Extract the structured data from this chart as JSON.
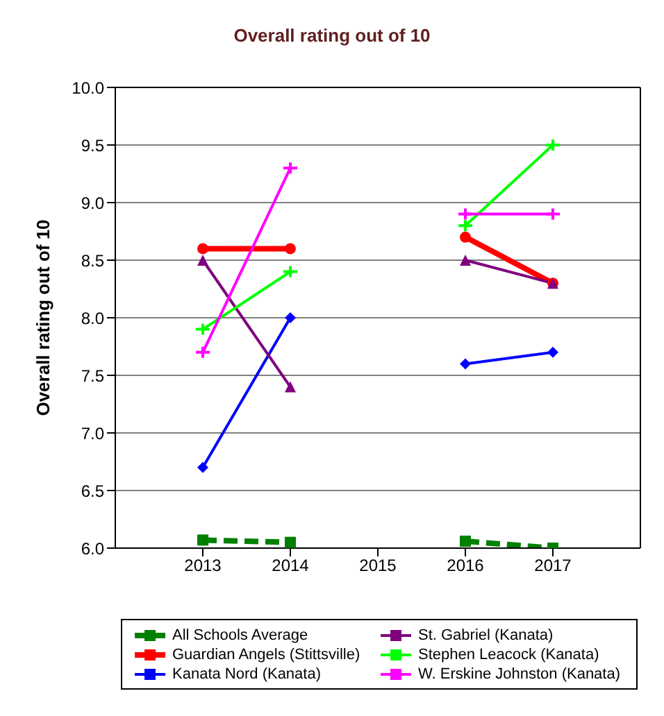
{
  "chart_data": {
    "type": "line",
    "title": "Overall rating out of 10",
    "ylabel": "Overall rating out of 10",
    "x": [
      2013,
      2014,
      2015,
      2016,
      2017
    ],
    "xlim": [
      2012,
      2018
    ],
    "xticks": [
      2013,
      2014,
      2015,
      2016,
      2017
    ],
    "ylim": [
      6,
      10
    ],
    "yticks": [
      {
        "value": 6,
        "label": "6.0"
      },
      6.5,
      {
        "value": 7,
        "label": "7.0"
      },
      7.5,
      {
        "value": 8,
        "label": "8.0"
      },
      8.5,
      {
        "value": 9,
        "label": "9.0"
      },
      9.5,
      {
        "value": 10,
        "label": "10.0"
      }
    ],
    "grid": "y",
    "legend": "bottom",
    "line_style": "solid",
    "series": [
      {
        "name": "All Schools Average",
        "color": "#008000",
        "values": [
          6.07,
          6.05,
          null,
          6.06,
          6.0
        ],
        "marker": "square",
        "line_style": "dashed"
      },
      {
        "name": "Guardian Angels (Stittsville)",
        "color": "#ff0000",
        "values": [
          8.6,
          8.6,
          null,
          8.7,
          8.3
        ],
        "marker": "circle"
      },
      {
        "name": "Kanata Nord (Kanata)",
        "color": "#0000ff",
        "values": [
          6.7,
          8.0,
          null,
          7.6,
          7.7
        ],
        "marker": "diamond"
      },
      {
        "name": "St. Gabriel (Kanata)",
        "color": "#800080",
        "values": [
          8.5,
          7.4,
          null,
          8.5,
          8.3
        ],
        "marker": "triangle"
      },
      {
        "name": "Stephen Leacock (Kanata)",
        "color": "#00ff00",
        "values": [
          7.9,
          8.4,
          null,
          8.8,
          9.5
        ],
        "marker": "cross"
      },
      {
        "name": "W. Erskine Johnston (Kanata)",
        "color": "#ff00ff",
        "values": [
          7.7,
          9.3,
          null,
          8.9,
          8.9
        ],
        "marker": "cross"
      }
    ]
  }
}
